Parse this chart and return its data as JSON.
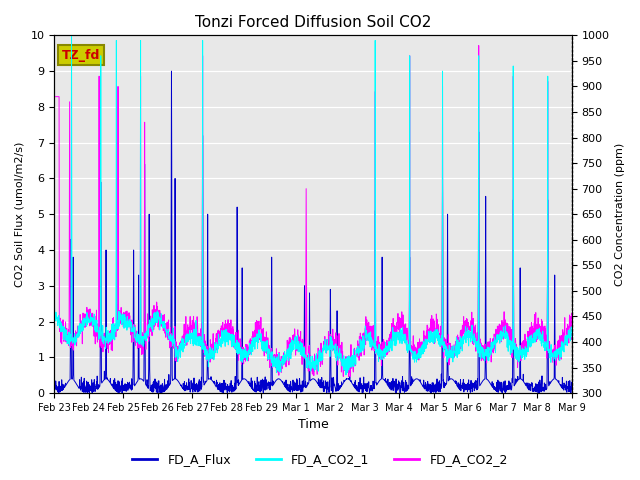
{
  "title": "Tonzi Forced Diffusion Soil CO2",
  "xlabel": "Time",
  "ylabel_left": "CO2 Soil Flux (umol/m2/s)",
  "ylabel_right": "CO2 Concentration (ppm)",
  "ylim_left": [
    0.0,
    10.0
  ],
  "ylim_right": [
    300,
    1000
  ],
  "yticks_left": [
    0.0,
    1.0,
    2.0,
    3.0,
    4.0,
    5.0,
    6.0,
    7.0,
    8.0,
    9.0,
    10.0
  ],
  "yticks_right": [
    300,
    350,
    400,
    450,
    500,
    550,
    600,
    650,
    700,
    750,
    800,
    850,
    900,
    950,
    1000
  ],
  "xtick_labels": [
    "Feb 23",
    "Feb 24",
    "Feb 25",
    "Feb 26",
    "Feb 27",
    "Feb 28",
    "Feb 29",
    "Mar 1",
    "Mar 2",
    "Mar 3",
    "Mar 4",
    "Mar 5",
    "Mar 6",
    "Mar 7",
    "Mar 8",
    "Mar 9"
  ],
  "color_flux": "#0000CC",
  "color_co2_1": "#00FFFF",
  "color_co2_2": "#FF00FF",
  "legend_label_flux": "FD_A_Flux",
  "legend_label_co2_1": "FD_A_CO2_1",
  "legend_label_co2_2": "FD_A_CO2_2",
  "box_label": "TZ_fd",
  "box_color": "#CCCC00",
  "box_text_color": "#CC0000",
  "background_color": "#E8E8E8",
  "n_points": 2304,
  "days": 16,
  "seed": 42
}
